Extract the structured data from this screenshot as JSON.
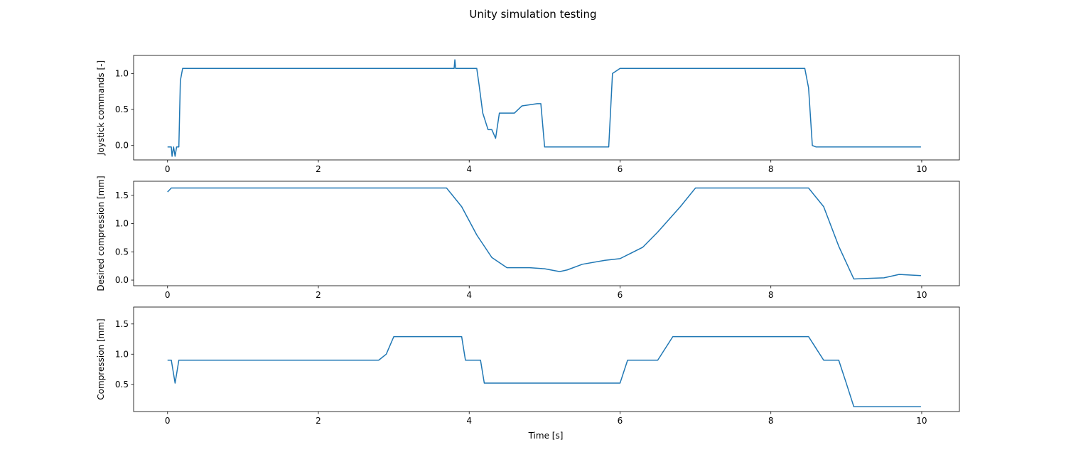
{
  "figure": {
    "suptitle": "Unity simulation testing",
    "line_color": "#1f77b4"
  },
  "chart_data": [
    {
      "type": "line",
      "ylabel": "Joystick commands [-]",
      "xlabel": "",
      "xlim": [
        -0.45,
        10.5
      ],
      "ylim": [
        -0.2,
        1.25
      ],
      "xticks": [
        0,
        2,
        4,
        6,
        8,
        10
      ],
      "xtick_labels": [
        "0",
        "2",
        "4",
        "6",
        "8",
        "10"
      ],
      "yticks": [
        0.0,
        0.5,
        1.0
      ],
      "ytick_labels": [
        "0.0",
        "0.5",
        "1.0"
      ],
      "grid": false,
      "series": [
        {
          "name": "",
          "color": "#1f77b4",
          "x": [
            0,
            0.05,
            0.06,
            0.08,
            0.1,
            0.12,
            0.15,
            0.17,
            0.2,
            0.3,
            1.0,
            2.0,
            3.0,
            3.8,
            3.81,
            3.82,
            4.1,
            4.13,
            4.18,
            4.25,
            4.3,
            4.35,
            4.4,
            4.6,
            4.7,
            4.9,
            4.95,
            5.0,
            5.5,
            5.85,
            5.9,
            6.0,
            7.0,
            8.0,
            8.45,
            8.5,
            8.55,
            8.6,
            9.0,
            9.5,
            9.99
          ],
          "y": [
            -0.02,
            -0.02,
            -0.15,
            -0.02,
            -0.15,
            -0.02,
            -0.02,
            0.9,
            1.07,
            1.07,
            1.07,
            1.07,
            1.07,
            1.07,
            1.19,
            1.07,
            1.07,
            0.85,
            0.45,
            0.22,
            0.22,
            0.1,
            0.45,
            0.45,
            0.55,
            0.58,
            0.58,
            -0.02,
            -0.02,
            -0.02,
            1.0,
            1.07,
            1.07,
            1.07,
            1.07,
            0.8,
            0.0,
            -0.02,
            -0.02,
            -0.02,
            -0.02
          ]
        }
      ]
    },
    {
      "type": "line",
      "ylabel": "Desired compression [mm]",
      "xlabel": "",
      "xlim": [
        -0.45,
        10.5
      ],
      "ylim": [
        -0.1,
        1.75
      ],
      "xticks": [
        0,
        2,
        4,
        6,
        8,
        10
      ],
      "xtick_labels": [
        "0",
        "2",
        "4",
        "6",
        "8",
        "10"
      ],
      "yticks": [
        0.0,
        0.5,
        1.0,
        1.5
      ],
      "ytick_labels": [
        "0.0",
        "0.5",
        "1.0",
        "1.5"
      ],
      "grid": false,
      "series": [
        {
          "name": "",
          "color": "#1f77b4",
          "x": [
            0,
            0.05,
            1.0,
            2.0,
            3.0,
            3.7,
            3.9,
            4.1,
            4.3,
            4.5,
            4.8,
            5.0,
            5.2,
            5.3,
            5.5,
            5.8,
            6.0,
            6.3,
            6.5,
            6.8,
            7.0,
            7.5,
            8.0,
            8.5,
            8.7,
            8.9,
            9.1,
            9.3,
            9.5,
            9.7,
            9.99
          ],
          "y": [
            1.56,
            1.63,
            1.63,
            1.63,
            1.63,
            1.63,
            1.3,
            0.8,
            0.4,
            0.22,
            0.22,
            0.2,
            0.15,
            0.18,
            0.28,
            0.35,
            0.38,
            0.58,
            0.85,
            1.3,
            1.63,
            1.63,
            1.63,
            1.63,
            1.3,
            0.6,
            0.02,
            0.03,
            0.04,
            0.1,
            0.08
          ]
        }
      ]
    },
    {
      "type": "line",
      "ylabel": "Compression [mm]",
      "xlabel": "Time [s]",
      "xlim": [
        -0.45,
        10.5
      ],
      "ylim": [
        0.05,
        1.78
      ],
      "xticks": [
        0,
        2,
        4,
        6,
        8,
        10
      ],
      "xtick_labels": [
        "0",
        "2",
        "4",
        "6",
        "8",
        "10"
      ],
      "yticks": [
        0.5,
        1.0,
        1.5
      ],
      "ytick_labels": [
        "0.5",
        "1.0",
        "1.5"
      ],
      "grid": false,
      "series": [
        {
          "name": "",
          "color": "#1f77b4",
          "x": [
            0,
            0.05,
            0.1,
            0.15,
            0.2,
            1.0,
            2.0,
            2.8,
            2.9,
            3.0,
            3.5,
            3.9,
            3.95,
            4.15,
            4.2,
            4.5,
            5.0,
            5.5,
            6.0,
            6.1,
            6.5,
            6.7,
            7.0,
            7.5,
            8.0,
            8.5,
            8.7,
            8.9,
            9.0,
            9.1,
            9.5,
            9.99
          ],
          "y": [
            0.9,
            0.9,
            0.52,
            0.9,
            0.9,
            0.9,
            0.9,
            0.9,
            1.0,
            1.29,
            1.29,
            1.29,
            0.9,
            0.9,
            0.52,
            0.52,
            0.52,
            0.52,
            0.52,
            0.9,
            0.9,
            1.29,
            1.29,
            1.29,
            1.29,
            1.29,
            0.9,
            0.9,
            0.52,
            0.13,
            0.13,
            0.13
          ]
        }
      ]
    }
  ]
}
